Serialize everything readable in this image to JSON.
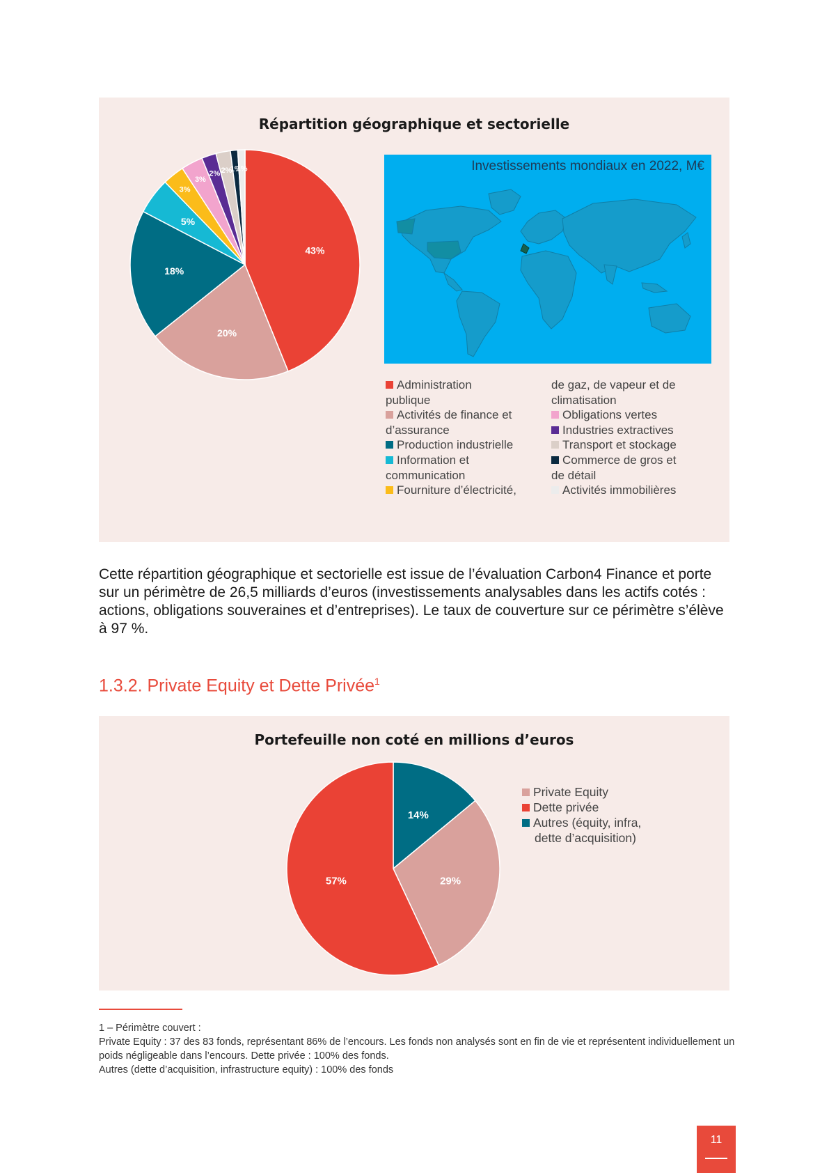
{
  "chart1": {
    "title": "Répartition géographique et sectorielle",
    "chart_data": {
      "type": "pie",
      "title": "Répartition géographique et sectorielle",
      "slices": [
        {
          "label": "Administration publique",
          "value": 43,
          "color": "#ea4235"
        },
        {
          "label": "Activités de finance et d’assurance",
          "value": 20,
          "color": "#d9a19c"
        },
        {
          "label": "Production industrielle",
          "value": 18,
          "color": "#006d84"
        },
        {
          "label": "Information et communication",
          "value": 5,
          "color": "#16b9d4"
        },
        {
          "label": "Fourniture d’électricité, de gaz, de vapeur et de climatisation",
          "value": 3,
          "color": "#fbbc1a"
        },
        {
          "label": "Obligations vertes",
          "value": 3,
          "color": "#f2a4cd"
        },
        {
          "label": "Industries extractives",
          "value": 2,
          "color": "#5a2c94"
        },
        {
          "label": "Transport et stockage",
          "value": 2,
          "color": "#dbcfc8"
        },
        {
          "label": "Commerce de gros et de détail",
          "value": 1,
          "color": "#0b2a40"
        },
        {
          "label": "Activités immobilières",
          "value": 1,
          "color": "#ececec"
        }
      ]
    },
    "labels": [
      "43%",
      "20%",
      "18%",
      "5%",
      "3%",
      "3%",
      "2%",
      "2%",
      "1%",
      "1%"
    ],
    "map_title": "Investissements mondiaux en 2022, M€",
    "legend_col1": [
      {
        "first": "Administration",
        "rest": "publique",
        "color": "#ea4235"
      },
      {
        "first": "Activités de finance et",
        "rest": "d’assurance",
        "color": "#d9a19c"
      },
      {
        "first": "Production industrielle",
        "rest": "",
        "color": "#006d84"
      },
      {
        "first": "Information et",
        "rest": "communication",
        "color": "#16b9d4"
      },
      {
        "first": "Fourniture d’électricité,",
        "rest": "",
        "color": "#fbbc1a"
      }
    ],
    "legend_col2": [
      {
        "first": "",
        "rest": "de gaz, de vapeur et de",
        "color": ""
      },
      {
        "first": "",
        "rest": "climatisation",
        "color": ""
      },
      {
        "first": "Obligations vertes",
        "rest": "",
        "color": "#f2a4cd"
      },
      {
        "first": "Industries extractives",
        "rest": "",
        "color": "#5a2c94"
      },
      {
        "first": "Transport et stockage",
        "rest": "",
        "color": "#dbcfc8"
      },
      {
        "first": "Commerce de gros et",
        "rest": "de détail",
        "color": "#0b2a40"
      },
      {
        "first": "Activités immobilières",
        "rest": "",
        "color": "#ececec"
      }
    ]
  },
  "paragraph": "Cette répartition géographique et sectorielle est issue de l’évaluation Carbon4 Finance et porte sur un périmètre de 26,5 milliards d’euros (investissements analysables dans les actifs cotés : actions, obligations souveraines et d’entreprises). Le taux de couverture sur ce périmètre s’élève à 97 %.",
  "heading": "1.3.2. Private Equity et Dette Privée",
  "heading_sup": "1",
  "chart2": {
    "title": "Portefeuille non coté en millions d’euros",
    "chart_data": {
      "type": "pie",
      "title": "Portefeuille non coté en millions d’euros",
      "slices": [
        {
          "label": "Autres (équity, infra, dette d’acquisition)",
          "value": 14,
          "color": "#006d84"
        },
        {
          "label": "Private Equity",
          "value": 29,
          "color": "#d9a19c"
        },
        {
          "label": "Dette privée",
          "value": 57,
          "color": "#ea4235"
        }
      ]
    },
    "labels": [
      "14%",
      "29%",
      "57%"
    ],
    "legend": [
      {
        "label": "Private Equity",
        "color": "#d9a19c"
      },
      {
        "label": "Dette privée",
        "color": "#ea4235"
      },
      {
        "label": "Autres (équity, infra,",
        "color": "#006d84"
      },
      {
        "label": "dette d’acquisition)",
        "color": ""
      }
    ]
  },
  "footnote": {
    "line1": "1 – Périmètre couvert :",
    "line2": "Private Equity : 37 des 83 fonds, représentant 86% de l’encours. Les fonds non analysés sont en fin de vie et représentent individuellement un poids négligeable dans l’encours. Dette privée : 100% des fonds.",
    "line3": "Autres (dette d’acquisition, infrastructure equity) : 100% des fonds"
  },
  "page_number": "11"
}
